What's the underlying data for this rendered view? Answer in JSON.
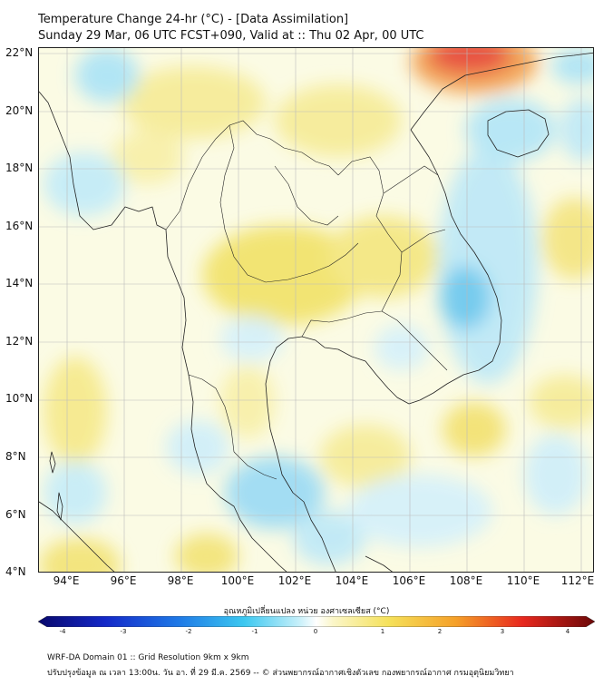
{
  "header": {
    "title_line1": "Temperature Change 24-hr (°C) - [Data Assimilation]",
    "title_line2": "Sunday 29 Mar, 06 UTC FCST+090, Valid at :: Thu 02 Apr, 00 UTC"
  },
  "map": {
    "lat_labels": [
      "22°N",
      "20°N",
      "18°N",
      "16°N",
      "14°N",
      "12°N",
      "10°N",
      "8°N",
      "6°N",
      "4°N"
    ],
    "lon_labels": [
      "94°E",
      "96°E",
      "98°E",
      "100°E",
      "102°E",
      "104°E",
      "106°E",
      "108°E",
      "110°E",
      "112°E"
    ],
    "lat_range": [
      4,
      22.2
    ],
    "lon_range": [
      93,
      112.5
    ],
    "colors": {
      "ocean": "#ffffff",
      "coast": "#222222",
      "grid": "#bbbbbb"
    }
  },
  "colorbar": {
    "title": "อุณหภูมิเปลี่ยนแปลง หน่วย องศาเซลเซียส (°C)",
    "ticks": [
      "-4",
      "-3",
      "-2",
      "-1",
      "0",
      "1",
      "2",
      "3",
      "4"
    ],
    "range": [
      -4,
      4
    ]
  },
  "footer": {
    "line1": "WRF-DA Domain 01 :: Grid Resolution 9km x 9km",
    "line2": "ปรับปรุงข้อมูล ณ เวลา 13:00น. วัน อา. ที่ 29 มี.ค. 2569 -- © ส่วนพยากรณ์อากาศเชิงตัวเลข กองพยากรณ์อากาศ กรมอุตุนิยมวิทยา"
  }
}
